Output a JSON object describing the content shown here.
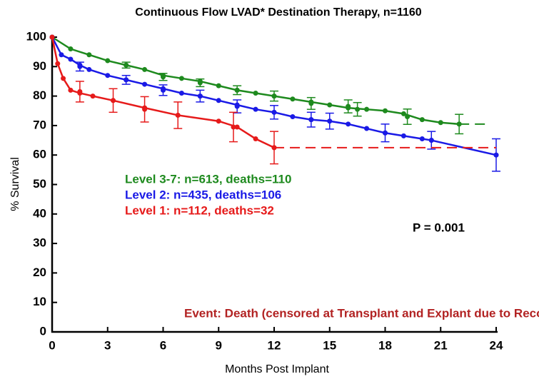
{
  "chart_data": {
    "type": "line",
    "title": "Continuous Flow LVAD* Destination Therapy, n=1160",
    "x_label": "Months Post Implant",
    "y_label": "% Survival",
    "xlim": [
      0,
      24
    ],
    "ylim": [
      0,
      100
    ],
    "xticks": [
      0,
      3,
      6,
      9,
      12,
      15,
      18,
      21,
      24
    ],
    "yticks": [
      0,
      10,
      20,
      30,
      40,
      50,
      60,
      70,
      80,
      90,
      100
    ],
    "annotations": [
      "P  = 0.001",
      "Event:  Death (censored at Transplant and Explant due to Recovery)"
    ],
    "series": [
      {
        "name": "Level 3-7:  n=613, deaths=110",
        "color": "#1e8a1e",
        "x": [
          0,
          1,
          2,
          3,
          4,
          5,
          6,
          7,
          8,
          9,
          10,
          11,
          12,
          13,
          14,
          15,
          16,
          17,
          18,
          19,
          20,
          21,
          22
        ],
        "values": [
          100,
          96,
          94,
          92,
          90.5,
          89,
          87,
          86,
          85,
          83.5,
          82,
          81,
          80,
          79,
          78,
          77,
          76,
          75.5,
          75,
          74,
          72,
          71,
          70.5
        ],
        "extend_to": 23.5,
        "error_bars": {
          "x": [
            4,
            6,
            8,
            10,
            12,
            14,
            16,
            16.5,
            19.2,
            22
          ],
          "values": [
            90.5,
            86.5,
            84.5,
            82,
            80,
            77.5,
            76.5,
            75.5,
            73,
            70.5
          ],
          "errors": [
            1,
            1.2,
            1.3,
            1.5,
            1.7,
            2,
            2.2,
            2.3,
            2.6,
            3.3
          ]
        }
      },
      {
        "name": "Level 2:  n=435, deaths=106",
        "color": "#1a1ae6",
        "x": [
          0,
          0.5,
          1,
          1.5,
          2,
          3,
          4,
          5,
          6,
          7,
          8,
          9,
          10,
          11,
          12,
          13,
          14,
          15,
          16,
          17,
          18,
          19,
          20,
          20.5,
          24
        ],
        "values": [
          100,
          94,
          92.5,
          90.5,
          89,
          87,
          85.5,
          84,
          82.5,
          81,
          80,
          78.5,
          77,
          75.5,
          74.5,
          73,
          72,
          71.5,
          70.5,
          69,
          67.5,
          66.5,
          65.5,
          65,
          60
        ],
        "error_bars": {
          "x": [
            1.5,
            4,
            6,
            8,
            10,
            12,
            14,
            15,
            18,
            20.5,
            24
          ],
          "values": [
            90,
            85.5,
            82,
            80,
            76.5,
            74.5,
            72,
            71.5,
            67.5,
            65,
            60
          ],
          "errors": [
            1.5,
            1.5,
            1.8,
            2,
            2.2,
            2.3,
            2.5,
            2.7,
            3,
            3,
            5.5
          ]
        }
      },
      {
        "name": "Level 1:   n=112, deaths=32",
        "color": "#e61a1a",
        "x": [
          0,
          0.3,
          0.6,
          1,
          1.5,
          2.2,
          3.3,
          5,
          6.8,
          9,
          10,
          11,
          12
        ],
        "values": [
          100,
          91,
          86,
          82,
          81,
          80,
          78.5,
          76,
          73.5,
          71.5,
          69.5,
          65.5,
          62.5
        ],
        "extend_to": 24,
        "error_bars": {
          "x": [
            1.5,
            3.3,
            5,
            6.8,
            9.8,
            12
          ],
          "values": [
            81.5,
            78.5,
            75.5,
            73.5,
            69.5,
            62.5
          ],
          "errors": [
            3.5,
            4,
            4.3,
            4.5,
            5,
            5.5
          ]
        }
      }
    ]
  }
}
